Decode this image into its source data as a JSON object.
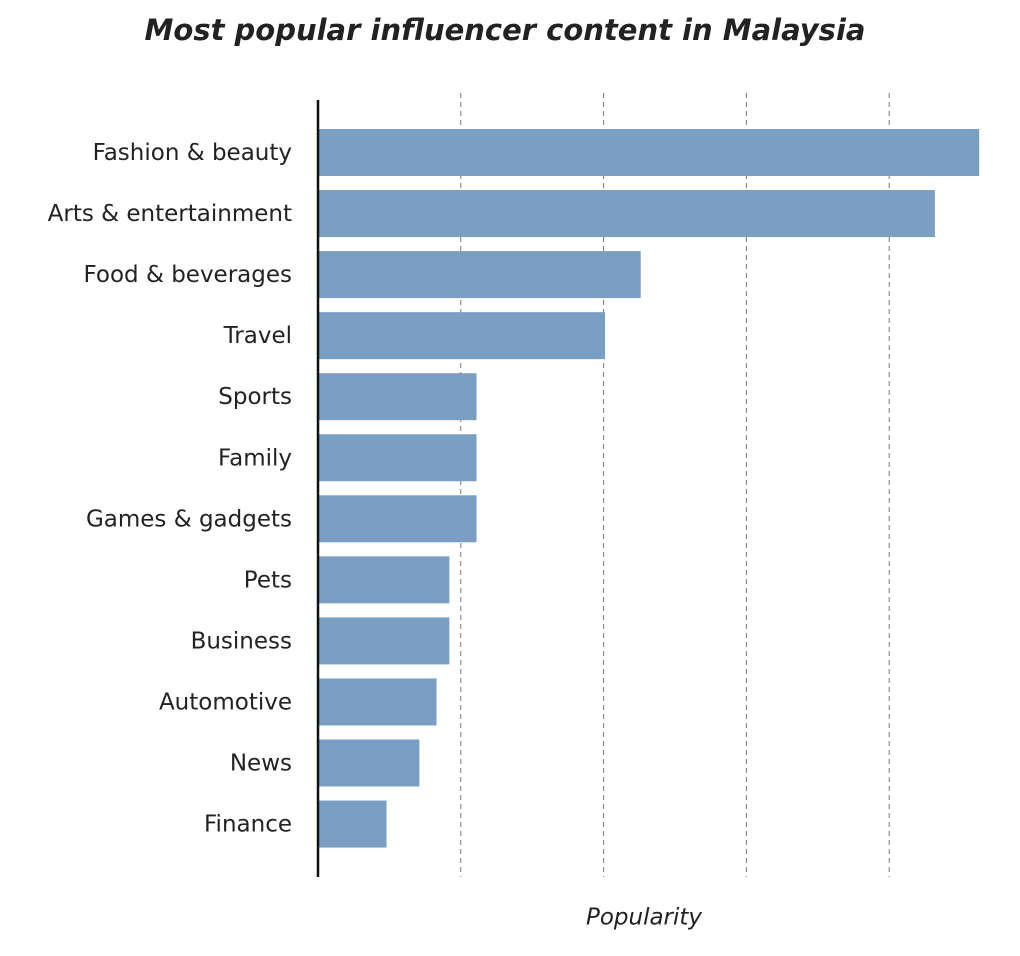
{
  "chart_data": {
    "type": "bar",
    "orientation": "horizontal",
    "title": "Most popular influencer content in Malaysia",
    "x_label": "Popularity",
    "categories": [
      "Fashion & beauty",
      "Arts & entertainment",
      "Food & beverages",
      "Travel",
      "Sports",
      "Family",
      "Games & gadgets",
      "Pets",
      "Business",
      "Automotive",
      "News",
      "Finance"
    ],
    "values": [
      4.63,
      4.32,
      2.26,
      2.01,
      1.11,
      1.11,
      1.11,
      0.92,
      0.92,
      0.83,
      0.71,
      0.48
    ],
    "color": "#7b9ec3",
    "xlim": [
      0,
      4.65
    ],
    "xticks": [
      1,
      2,
      3,
      4
    ],
    "grid": true
  }
}
